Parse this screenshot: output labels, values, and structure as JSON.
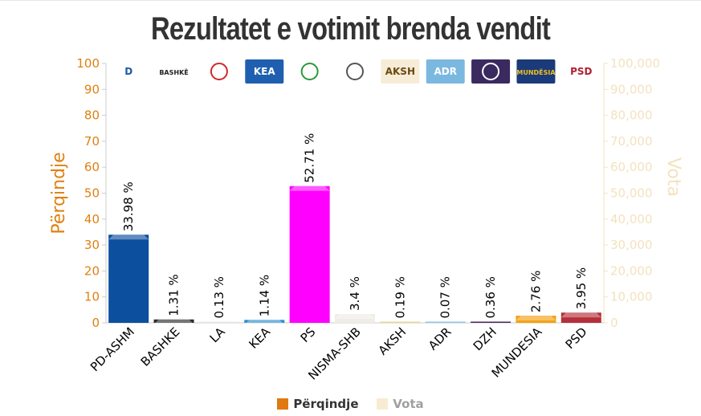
{
  "title": "Rezultatet e votimit brenda vendit",
  "colors": {
    "left_axis": "#e08010",
    "right_axis": "#f4e2be",
    "legend_percent": "#e07a10",
    "legend_votes": "#f7ecd2"
  },
  "chart_data": {
    "type": "bar",
    "title": "Rezultatet e votimit brenda vendit",
    "categories": [
      "PD-ASHM",
      "BASHKE",
      "LA",
      "KEA",
      "PS",
      "NISMA-SHB",
      "AKSH",
      "ADR",
      "DZH",
      "MUNDESIA",
      "PSD"
    ],
    "series": [
      {
        "name": "Përqindje",
        "axis": "left",
        "values": [
          33.98,
          1.31,
          0.13,
          1.14,
          52.71,
          3.4,
          0.19,
          0.07,
          0.36,
          2.76,
          3.95
        ],
        "data_labels": [
          "33.98 %",
          "1.31 %",
          "0.13 %",
          "1.14 %",
          "52.71 %",
          "3.4 %",
          "0.19 %",
          "0.07 %",
          "0.36 %",
          "2.76 %",
          "3.95 %"
        ],
        "colors": [
          "#0b4f9e",
          "#2b2b2b",
          "#e8e8e8",
          "#2b8fd0",
          "#ff00ff",
          "#f0ede6",
          "#e8d890",
          "#8fc4e8",
          "#4a2a5a",
          "#f5a010",
          "#b5303a"
        ]
      },
      {
        "name": "Vota",
        "axis": "right"
      }
    ],
    "ylabel": "Përqindje",
    "y2label": "Vota",
    "ylim": [
      0,
      100
    ],
    "y2lim": [
      0,
      100000
    ],
    "yticks": [
      "0",
      "10",
      "20",
      "30",
      "40",
      "50",
      "60",
      "70",
      "80",
      "90",
      "100"
    ],
    "y2ticks": [
      "0",
      "10,000",
      "20,000",
      "30,000",
      "40,000",
      "50,000",
      "60,000",
      "70,000",
      "80,000",
      "90,000",
      "100,000"
    ],
    "legend_position": "bottom-center",
    "grid": false
  },
  "logos": [
    {
      "icon": "pd-logo-icon",
      "bg": "#ffffff",
      "fg": "#1a5aa8",
      "text": "D"
    },
    {
      "icon": "bashke-logo-icon",
      "bg": "#ffffff",
      "fg": "#222222",
      "text": "BASHKË"
    },
    {
      "icon": "la-logo-icon",
      "bg": "#ffffff",
      "fg": "#d02828",
      "text": ""
    },
    {
      "icon": "kea-logo-icon",
      "bg": "#1f5fb0",
      "fg": "#ffffff",
      "text": "KEA"
    },
    {
      "icon": "ps-logo-icon",
      "bg": "#ffffff",
      "fg": "#2a9a3a",
      "text": ""
    },
    {
      "icon": "nisma-logo-icon",
      "bg": "#ffffff",
      "fg": "#555555",
      "text": ""
    },
    {
      "icon": "aksh-logo-icon",
      "bg": "#f7ecd8",
      "fg": "#6a4a10",
      "text": "AKSH"
    },
    {
      "icon": "adr-logo-icon",
      "bg": "#7ab8e0",
      "fg": "#ffffff",
      "text": "ADR"
    },
    {
      "icon": "dzh-logo-icon",
      "bg": "#3a2a60",
      "fg": "#ffffff",
      "text": ""
    },
    {
      "icon": "mundesia-logo-icon",
      "bg": "#1a3a7a",
      "fg": "#f0c020",
      "text": "MUNDËSIA"
    },
    {
      "icon": "psd-logo-icon",
      "bg": "#ffffff",
      "fg": "#b02030",
      "text": "PSD"
    }
  ]
}
